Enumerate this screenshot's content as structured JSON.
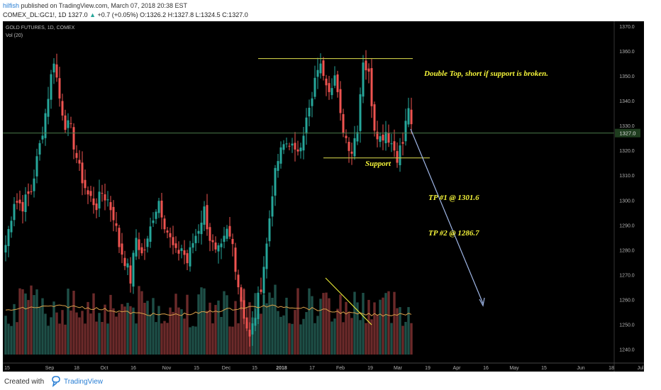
{
  "header": {
    "user": "hilfish",
    "published": " published on TradingView.com, March 07, 2018 20:38 EST",
    "symbol": "COMEX_DL:GC1!, 1D",
    "last": "1327.0",
    "change_arrow": "▲",
    "change": "+0.7 (+0.05%)",
    "ohlc": "O:1326.2 H:1327.8 L:1324.5 C:1327.0"
  },
  "legend": {
    "title": "GOLD FUTURES, 1D, COMEX",
    "volume": "Vol (20)"
  },
  "footer": {
    "created": "Created with",
    "brand": "TradingView"
  },
  "colors": {
    "up": "#26a69a",
    "down": "#ef5350",
    "annotation": "#f5f53a",
    "resistance": "#c7c746",
    "arrow": "#9fb6e6",
    "price_line": "#4a7a4a"
  },
  "chart_data": {
    "type": "candlestick",
    "title": "GOLD FUTURES, 1D, COMEX",
    "ylim": [
      1235,
      1372
    ],
    "yticks": [
      "1370.0",
      "1360.0",
      "1350.0",
      "1340.0",
      "1330.0",
      "1320.0",
      "1310.0",
      "1300.0",
      "1290.0",
      "1280.0",
      "1270.0",
      "1260.0",
      "1250.0",
      "1240.0"
    ],
    "xticks": [
      "15",
      "Sep",
      "18",
      "Oct",
      "16",
      "Nov",
      "15",
      "Dec",
      "15",
      "2018",
      "17",
      "Feb",
      "19",
      "Mar",
      "19",
      "Apr",
      "16",
      "May",
      "15",
      "Jun",
      "18",
      "Jul"
    ],
    "last_price": 1327.0,
    "close_path": [
      [
        0,
        1282
      ],
      [
        3,
        1300
      ],
      [
        6,
        1298
      ],
      [
        9,
        1304
      ],
      [
        12,
        1322
      ],
      [
        14,
        1335
      ],
      [
        17,
        1357
      ],
      [
        19,
        1341
      ],
      [
        21,
        1331
      ],
      [
        23,
        1328
      ],
      [
        26,
        1312
      ],
      [
        29,
        1302
      ],
      [
        32,
        1298
      ],
      [
        34,
        1303
      ],
      [
        36,
        1300
      ],
      [
        38,
        1294
      ],
      [
        40,
        1282
      ],
      [
        42,
        1276
      ],
      [
        44,
        1268
      ],
      [
        46,
        1285
      ],
      [
        48,
        1278
      ],
      [
        50,
        1283
      ],
      [
        52,
        1294
      ],
      [
        54,
        1300
      ],
      [
        56,
        1291
      ],
      [
        58,
        1284
      ],
      [
        60,
        1278
      ],
      [
        62,
        1281
      ],
      [
        64,
        1275
      ],
      [
        66,
        1283
      ],
      [
        68,
        1289
      ],
      [
        70,
        1296
      ],
      [
        72,
        1285
      ],
      [
        74,
        1278
      ],
      [
        76,
        1280
      ],
      [
        78,
        1287
      ],
      [
        80,
        1282
      ],
      [
        82,
        1266
      ],
      [
        84,
        1254
      ],
      [
        86,
        1244
      ],
      [
        88,
        1254
      ],
      [
        90,
        1266
      ],
      [
        92,
        1282
      ],
      [
        94,
        1304
      ],
      [
        96,
        1316
      ],
      [
        98,
        1322
      ],
      [
        100,
        1324
      ],
      [
        102,
        1318
      ],
      [
        104,
        1324
      ],
      [
        106,
        1332
      ],
      [
        108,
        1340
      ],
      [
        110,
        1354
      ],
      [
        112,
        1352
      ],
      [
        114,
        1346
      ],
      [
        116,
        1350
      ],
      [
        118,
        1333
      ],
      [
        120,
        1325
      ],
      [
        122,
        1320
      ],
      [
        124,
        1330
      ],
      [
        126,
        1357
      ],
      [
        128,
        1350
      ],
      [
        130,
        1330
      ],
      [
        132,
        1325
      ],
      [
        134,
        1328
      ],
      [
        136,
        1323
      ],
      [
        138,
        1318
      ],
      [
        140,
        1323
      ],
      [
        142,
        1338
      ],
      [
        143,
        1328
      ]
    ],
    "support": 1317,
    "resistance": 1357,
    "annotations": {
      "double_top": "Double Top, short if support is broken.",
      "support": "Support",
      "tp1": "TP #1 @ 1301.6",
      "tp2": "TP #2 @ 1286.7"
    }
  }
}
